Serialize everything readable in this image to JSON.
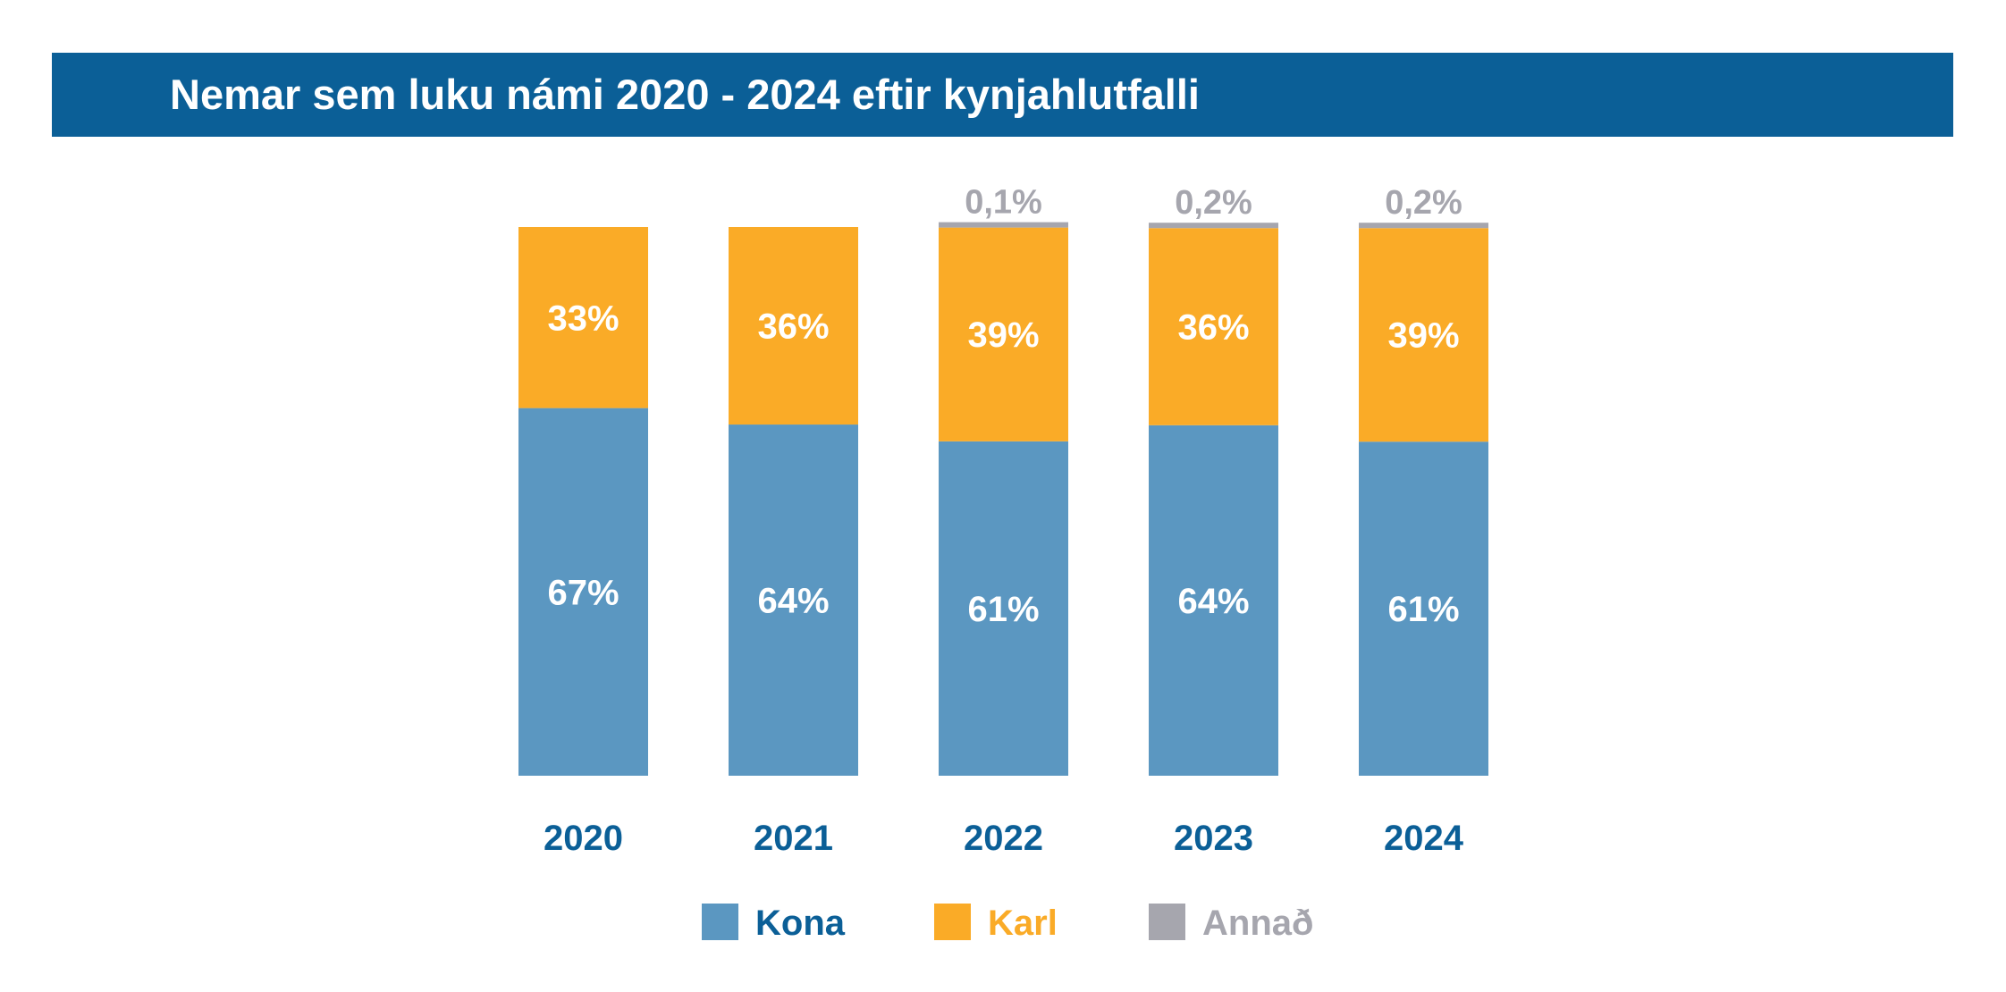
{
  "header": {
    "title": "Nemar sem luku námi 2020 - 2024 eftir kynjahlutfalli"
  },
  "colors": {
    "header_bg": "#0b5f97",
    "kona": "#5b97c1",
    "karl": "#faab27",
    "annad": "#a6a6ae",
    "category_text": "#0b5f97"
  },
  "chart_data": {
    "type": "bar",
    "stacked": true,
    "normalized_to_percent": true,
    "title": "Nemar sem luku námi 2020 - 2024 eftir kynjahlutfalli",
    "xlabel": "",
    "ylabel": "",
    "ylim": [
      0,
      100
    ],
    "grid": false,
    "legend_position": "bottom-center",
    "categories": [
      "2020",
      "2021",
      "2022",
      "2023",
      "2024"
    ],
    "series": [
      {
        "name": "Kona",
        "values": [
          67,
          64,
          61,
          64,
          61
        ],
        "labels": [
          "67%",
          "64%",
          "61%",
          "64%",
          "61%"
        ]
      },
      {
        "name": "Karl",
        "values": [
          33,
          36,
          39,
          36,
          39
        ],
        "labels": [
          "33%",
          "36%",
          "39%",
          "36%",
          "39%"
        ]
      },
      {
        "name": "Annað",
        "values": [
          0,
          0,
          0.1,
          0.2,
          0.2
        ],
        "labels": [
          "",
          "",
          "0,1%",
          "0,2%",
          "0,2%"
        ]
      }
    ]
  }
}
